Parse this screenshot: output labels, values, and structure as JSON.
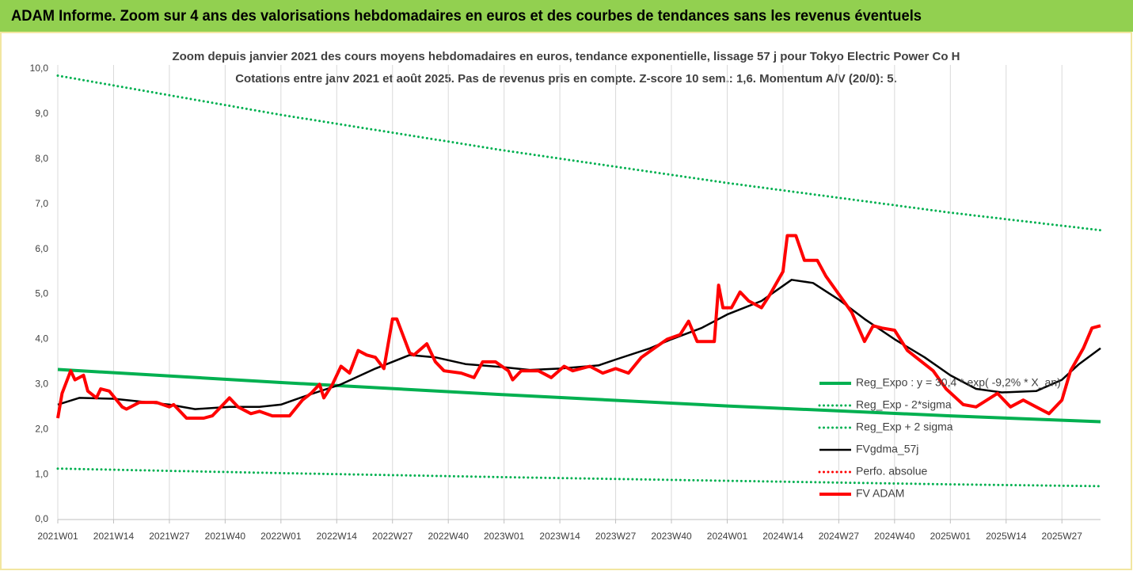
{
  "header": {
    "title": "ADAM Informe. Zoom sur 4 ans des valorisations hebdomadaires en euros et des courbes de tendances sans les revenus éventuels"
  },
  "chart_data": {
    "type": "line",
    "title": "Zoom depuis janvier 2021 des cours moyens hebdomadaires en euros, tendance exponentielle, lissage 57 j pour Tokyo Electric Power Co H",
    "subtitle": "Cotations entre janv 2021 et août 2025.  Pas de revenus pris en compte. Z-score 10 sem.: 1,6. Momentum A/V (20/0): 5.",
    "xlim": [
      0,
      243
    ],
    "xticks": [
      {
        "value": 0,
        "label": "2021W01"
      },
      {
        "value": 13,
        "label": "2021W14"
      },
      {
        "value": 26,
        "label": "2021W27"
      },
      {
        "value": 39,
        "label": "2021W40"
      },
      {
        "value": 52,
        "label": "2022W01"
      },
      {
        "value": 65,
        "label": "2022W14"
      },
      {
        "value": 78,
        "label": "2022W27"
      },
      {
        "value": 91,
        "label": "2022W40"
      },
      {
        "value": 104,
        "label": "2023W01"
      },
      {
        "value": 117,
        "label": "2023W14"
      },
      {
        "value": 130,
        "label": "2023W27"
      },
      {
        "value": 143,
        "label": "2023W40"
      },
      {
        "value": 156,
        "label": "2024W01"
      },
      {
        "value": 169,
        "label": "2024W14"
      },
      {
        "value": 182,
        "label": "2024W27"
      },
      {
        "value": 195,
        "label": "2024W40"
      },
      {
        "value": 208,
        "label": "2025W01"
      },
      {
        "value": 221,
        "label": "2025W14"
      },
      {
        "value": 234,
        "label": "2025W27"
      }
    ],
    "ylim": [
      0,
      10
    ],
    "yticks": [
      {
        "value": 0,
        "label": "0,0"
      },
      {
        "value": 1,
        "label": "1,0"
      },
      {
        "value": 2,
        "label": "2,0"
      },
      {
        "value": 3,
        "label": "3,0"
      },
      {
        "value": 4,
        "label": "4,0"
      },
      {
        "value": 5,
        "label": "5,0"
      },
      {
        "value": 6,
        "label": "6,0"
      },
      {
        "value": 7,
        "label": "7,0"
      },
      {
        "value": 8,
        "label": "8,0"
      },
      {
        "value": 9,
        "label": "9,0"
      },
      {
        "value": 10,
        "label": "10,0"
      }
    ],
    "grid": "x",
    "legend": "right",
    "series": [
      {
        "name": "Reg_Expo : y = 30,4 * exp( -9,2% * X_an)",
        "color": "#00b050",
        "style": "solid",
        "x": [
          0,
          52,
          104,
          156,
          208,
          243
        ],
        "values": [
          3.33,
          3.04,
          2.77,
          2.52,
          2.3,
          2.17
        ]
      },
      {
        "name": "Reg_Exp - 2*sigma",
        "color": "#00b050",
        "style": "dotted",
        "x": [
          0,
          52,
          104,
          156,
          208,
          243
        ],
        "values": [
          1.13,
          1.03,
          0.94,
          0.86,
          0.78,
          0.74
        ]
      },
      {
        "name": "Reg_Exp + 2 sigma",
        "color": "#00b050",
        "style": "dotted",
        "x": [
          0,
          52,
          104,
          156,
          208,
          243
        ],
        "values": [
          9.85,
          8.98,
          8.19,
          7.47,
          6.81,
          6.42
        ]
      },
      {
        "name": "FVgdma_57j",
        "color": "#000000",
        "style": "solid",
        "x": [
          0,
          5,
          13,
          26,
          32,
          40,
          47,
          52,
          58,
          66,
          74,
          78,
          82,
          88,
          95,
          104,
          110,
          117,
          126,
          130,
          138,
          143,
          150,
          156,
          164,
          171,
          176,
          182,
          188,
          195,
          202,
          208,
          214,
          220,
          228,
          234,
          238,
          243
        ],
        "values": [
          2.55,
          2.7,
          2.68,
          2.55,
          2.45,
          2.5,
          2.5,
          2.55,
          2.75,
          3.0,
          3.35,
          3.5,
          3.65,
          3.6,
          3.45,
          3.38,
          3.32,
          3.35,
          3.42,
          3.55,
          3.8,
          4.0,
          4.25,
          4.55,
          4.85,
          5.32,
          5.25,
          4.88,
          4.45,
          4.0,
          3.6,
          3.2,
          2.9,
          2.82,
          2.85,
          3.1,
          3.45,
          3.8
        ]
      },
      {
        "name": "Perfo. absolue",
        "color": "#ff0000",
        "style": "dotted",
        "x": [],
        "values": []
      },
      {
        "name": "FV ADAM",
        "color": "#ff0000",
        "style": "solid",
        "x": [
          0,
          1,
          3,
          4,
          6,
          7,
          9,
          10,
          12,
          15,
          16,
          19,
          23,
          26,
          27,
          30,
          34,
          36,
          38,
          40,
          42,
          45,
          47,
          50,
          54,
          57,
          59,
          61,
          62,
          64,
          66,
          68,
          70,
          72,
          74,
          76,
          78,
          79,
          82,
          83,
          86,
          88,
          90,
          94,
          97,
          99,
          102,
          105,
          106,
          108,
          112,
          115,
          118,
          120,
          124,
          127,
          130,
          133,
          136,
          139,
          142,
          145,
          147,
          149,
          153,
          154,
          155,
          157,
          159,
          161,
          164,
          166,
          169,
          170,
          172,
          174,
          177,
          179,
          182,
          185,
          188,
          190,
          192,
          195,
          198,
          200,
          204,
          207,
          211,
          214,
          219,
          222,
          225,
          228,
          231,
          234,
          236,
          239,
          241,
          243
        ],
        "values": [
          2.25,
          2.8,
          3.3,
          3.1,
          3.2,
          2.85,
          2.7,
          2.9,
          2.85,
          2.5,
          2.45,
          2.6,
          2.6,
          2.5,
          2.55,
          2.25,
          2.25,
          2.3,
          2.5,
          2.7,
          2.5,
          2.35,
          2.4,
          2.3,
          2.3,
          2.65,
          2.8,
          3.0,
          2.7,
          3.0,
          3.4,
          3.25,
          3.75,
          3.65,
          3.6,
          3.35,
          4.45,
          4.45,
          3.7,
          3.65,
          3.9,
          3.5,
          3.3,
          3.25,
          3.15,
          3.5,
          3.5,
          3.3,
          3.1,
          3.3,
          3.3,
          3.15,
          3.4,
          3.3,
          3.4,
          3.25,
          3.35,
          3.25,
          3.6,
          3.8,
          4.0,
          4.1,
          4.4,
          3.95,
          3.95,
          5.2,
          4.7,
          4.7,
          5.05,
          4.85,
          4.7,
          5.0,
          5.5,
          6.3,
          6.3,
          5.75,
          5.75,
          5.4,
          5.0,
          4.6,
          3.95,
          4.3,
          4.25,
          4.2,
          3.75,
          3.6,
          3.3,
          2.9,
          2.55,
          2.5,
          2.8,
          2.5,
          2.65,
          2.5,
          2.35,
          2.65,
          3.3,
          3.8,
          4.25,
          4.3
        ]
      }
    ]
  }
}
